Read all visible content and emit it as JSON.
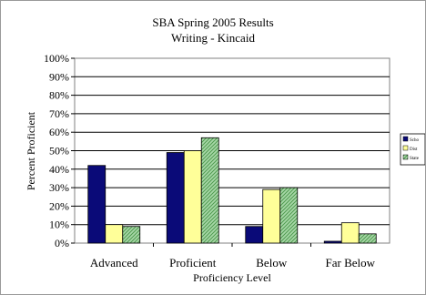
{
  "chart_data": {
    "type": "bar",
    "title": "SBA Spring 2005 Results",
    "subtitle": "Writing - Kincaid",
    "xlabel": "Proficiency Level",
    "ylabel": "Percent Proficient",
    "categories": [
      "Advanced",
      "Proficient",
      "Below",
      "Far Below"
    ],
    "ylim": [
      0,
      100
    ],
    "y_ticks": [
      0,
      10,
      20,
      30,
      40,
      50,
      60,
      70,
      80,
      90,
      100
    ],
    "y_tick_labels": [
      "0%",
      "10%",
      "20%",
      "30%",
      "40%",
      "50%",
      "60%",
      "70%",
      "80%",
      "90%",
      "100%"
    ],
    "grid": true,
    "legend_position": "right",
    "series": [
      {
        "name": "Scho",
        "color": "#0a0a78",
        "pattern": "solid",
        "values": [
          42,
          49,
          9,
          1
        ]
      },
      {
        "name": "Dist",
        "color": "#ffff99",
        "pattern": "solid",
        "values": [
          10,
          50,
          29,
          11
        ]
      },
      {
        "name": "State",
        "color": "#a8d8a8",
        "pattern": "diagonal-stripes",
        "values": [
          9,
          57,
          30,
          5
        ]
      }
    ]
  }
}
